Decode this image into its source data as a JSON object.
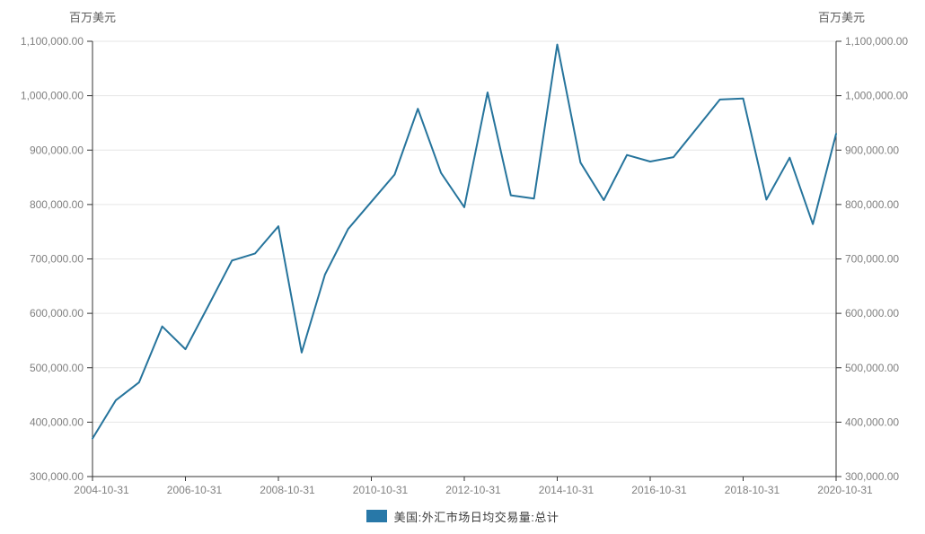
{
  "units": {
    "left_axis_unit": "百万美元",
    "right_axis_unit": "百万美元"
  },
  "legend": {
    "label": "美国:外汇市场日均交易量:总计",
    "swatch_color": "#2878a8"
  },
  "colors": {
    "line": "#26749c",
    "grid": "#e6e6e6",
    "axis": "#333333",
    "tick_label": "#7f7f7f",
    "unit_label": "#595959",
    "background": "#ffffff"
  },
  "chart_data": {
    "type": "line",
    "title": "",
    "ylabel": "百万美元",
    "xlabel": "",
    "grid": "horizontal",
    "legend_position": "bottom",
    "ylim": [
      300000,
      1100000
    ],
    "y_ticks": [
      300000,
      400000,
      500000,
      600000,
      700000,
      800000,
      900000,
      1000000,
      1100000
    ],
    "y_tick_labels": [
      "300,000.00",
      "400,000.00",
      "500,000.00",
      "600,000.00",
      "700,000.00",
      "800,000.00",
      "900,000.00",
      "1,000,000.00",
      "1,100,000.00"
    ],
    "x_tick_labels": [
      "2004-10-31",
      "2006-10-31",
      "2008-10-31",
      "2010-10-31",
      "2012-10-31",
      "2014-10-31",
      "2016-10-31",
      "2018-10-31",
      "2020-10-31"
    ],
    "x_tick_every": 4,
    "x": [
      "2004-10-31",
      "2005-04-30",
      "2005-10-31",
      "2006-04-30",
      "2006-10-31",
      "2007-04-30",
      "2007-10-31",
      "2008-04-30",
      "2008-10-31",
      "2009-04-30",
      "2009-10-31",
      "2010-04-30",
      "2010-10-31",
      "2011-04-30",
      "2011-10-31",
      "2012-04-30",
      "2012-10-31",
      "2013-04-30",
      "2013-10-31",
      "2014-04-30",
      "2014-10-31",
      "2015-04-30",
      "2015-10-31",
      "2016-04-30",
      "2016-10-31",
      "2017-04-30",
      "2017-10-31",
      "2018-04-30",
      "2018-10-31",
      "2019-04-30",
      "2019-10-31",
      "2020-04-30",
      "2020-10-31"
    ],
    "series": [
      {
        "name": "美国:外汇市场日均交易量:总计",
        "color": "#26749c",
        "values": [
          370000,
          440000,
          473000,
          576000,
          534000,
          615000,
          697000,
          710000,
          760000,
          528000,
          671000,
          755000,
          805000,
          855000,
          976000,
          858000,
          795000,
          1006000,
          817000,
          811000,
          1094000,
          877000,
          808000,
          891000,
          879000,
          887000,
          940000,
          993000,
          995000,
          809000,
          886000,
          764000,
          930000
        ]
      }
    ]
  }
}
